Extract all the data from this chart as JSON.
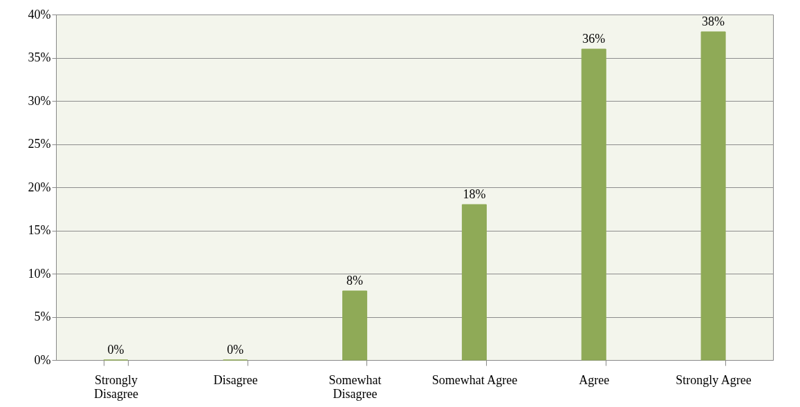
{
  "chart_data": {
    "type": "bar",
    "categories": [
      "Strongly Disagree",
      "Disagree",
      "Somewhat Disagree",
      "Somewhat Agree",
      "Agree",
      "Strongly Agree"
    ],
    "values": [
      0,
      0,
      8,
      18,
      36,
      38
    ],
    "value_labels": [
      "0%",
      "0%",
      "8%",
      "18%",
      "36%",
      "38%"
    ],
    "color": "#8faa57",
    "ylim": [
      0,
      40
    ],
    "yticks": [
      {
        "value": 0,
        "label": "0%"
      },
      {
        "value": 5,
        "label": "5%"
      },
      {
        "value": 10,
        "label": "10%"
      },
      {
        "value": 15,
        "label": "15%"
      },
      {
        "value": 20,
        "label": "20%"
      },
      {
        "value": 25,
        "label": "25%"
      },
      {
        "value": 30,
        "label": "30%"
      },
      {
        "value": 35,
        "label": "35%"
      },
      {
        "value": 40,
        "label": "40%"
      }
    ],
    "grid": "y"
  }
}
